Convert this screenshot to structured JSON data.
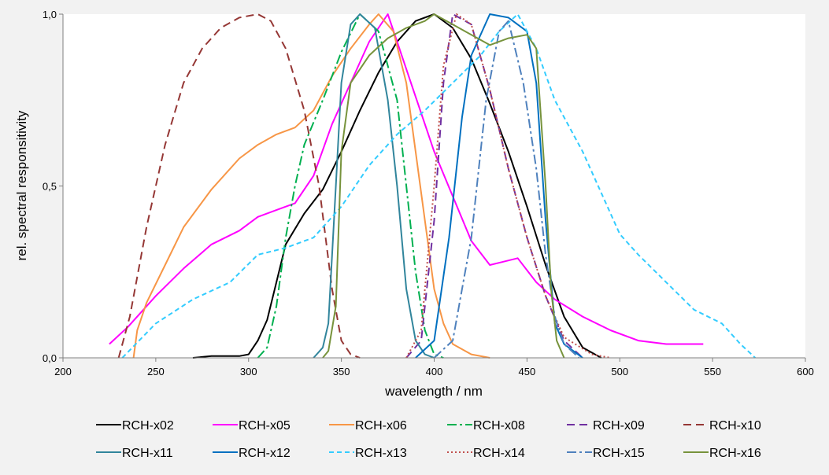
{
  "chart_data": {
    "type": "line",
    "title": "",
    "xlabel": "wavelength  / nm",
    "ylabel": "rel. spectral responsitivity",
    "xlim": [
      200,
      600
    ],
    "ylim": [
      0,
      1
    ],
    "x_ticks": [
      200,
      250,
      300,
      350,
      400,
      450,
      500,
      550,
      600
    ],
    "x_tick_labels": [
      "200",
      "250",
      "300",
      "350",
      "400",
      "450",
      "500",
      "550",
      "600"
    ],
    "y_ticks": [
      0,
      0.5,
      1
    ],
    "y_tick_labels": [
      "0,0",
      "0,5",
      "1,0"
    ],
    "grid": false,
    "legend_position": "bottom",
    "series": [
      {
        "name": "RCH-x02",
        "color": "#000000",
        "dash": "solid",
        "points": [
          [
            270,
            0
          ],
          [
            280,
            0.005
          ],
          [
            295,
            0.005
          ],
          [
            300,
            0.01
          ],
          [
            305,
            0.05
          ],
          [
            310,
            0.11
          ],
          [
            315,
            0.22
          ],
          [
            320,
            0.33
          ],
          [
            330,
            0.42
          ],
          [
            340,
            0.49
          ],
          [
            350,
            0.6
          ],
          [
            360,
            0.72
          ],
          [
            370,
            0.83
          ],
          [
            380,
            0.92
          ],
          [
            390,
            0.98
          ],
          [
            400,
            1.0
          ],
          [
            410,
            0.96
          ],
          [
            420,
            0.87
          ],
          [
            430,
            0.74
          ],
          [
            440,
            0.6
          ],
          [
            450,
            0.44
          ],
          [
            460,
            0.27
          ],
          [
            470,
            0.12
          ],
          [
            480,
            0.03
          ],
          [
            490,
            0
          ]
        ]
      },
      {
        "name": "RCH-x05",
        "color": "#ff00ff",
        "dash": "solid",
        "points": [
          [
            225,
            0.04
          ],
          [
            235,
            0.09
          ],
          [
            250,
            0.18
          ],
          [
            265,
            0.26
          ],
          [
            280,
            0.33
          ],
          [
            295,
            0.37
          ],
          [
            305,
            0.41
          ],
          [
            315,
            0.43
          ],
          [
            325,
            0.45
          ],
          [
            335,
            0.53
          ],
          [
            345,
            0.68
          ],
          [
            355,
            0.8
          ],
          [
            365,
            0.92
          ],
          [
            375,
            1.0
          ],
          [
            380,
            0.92
          ],
          [
            390,
            0.76
          ],
          [
            400,
            0.6
          ],
          [
            410,
            0.47
          ],
          [
            420,
            0.34
          ],
          [
            430,
            0.27
          ],
          [
            445,
            0.29
          ],
          [
            455,
            0.22
          ],
          [
            465,
            0.17
          ],
          [
            480,
            0.12
          ],
          [
            495,
            0.08
          ],
          [
            510,
            0.05
          ],
          [
            525,
            0.04
          ],
          [
            545,
            0.04
          ]
        ]
      },
      {
        "name": "RCH-x06",
        "color": "#f79646",
        "dash": "solid",
        "points": [
          [
            238,
            0
          ],
          [
            240,
            0.08
          ],
          [
            245,
            0.16
          ],
          [
            255,
            0.27
          ],
          [
            265,
            0.38
          ],
          [
            280,
            0.49
          ],
          [
            295,
            0.58
          ],
          [
            305,
            0.62
          ],
          [
            315,
            0.65
          ],
          [
            325,
            0.67
          ],
          [
            335,
            0.72
          ],
          [
            345,
            0.82
          ],
          [
            355,
            0.9
          ],
          [
            365,
            0.97
          ],
          [
            370,
            1.0
          ],
          [
            378,
            0.95
          ],
          [
            385,
            0.8
          ],
          [
            390,
            0.6
          ],
          [
            395,
            0.4
          ],
          [
            400,
            0.2
          ],
          [
            405,
            0.1
          ],
          [
            410,
            0.04
          ],
          [
            420,
            0.01
          ],
          [
            430,
            0
          ]
        ]
      },
      {
        "name": "RCH-x08",
        "color": "#00b050",
        "dash": "12,4,3,4",
        "points": [
          [
            305,
            0
          ],
          [
            310,
            0.03
          ],
          [
            315,
            0.15
          ],
          [
            320,
            0.35
          ],
          [
            325,
            0.5
          ],
          [
            330,
            0.62
          ],
          [
            340,
            0.75
          ],
          [
            350,
            0.89
          ],
          [
            360,
            1.0
          ],
          [
            370,
            0.95
          ],
          [
            380,
            0.75
          ],
          [
            385,
            0.5
          ],
          [
            390,
            0.25
          ],
          [
            395,
            0.08
          ],
          [
            400,
            0.01
          ],
          [
            405,
            0
          ]
        ]
      },
      {
        "name": "RCH-x09",
        "color": "#7030a0",
        "dash": "10,6",
        "points": [
          [
            385,
            0
          ],
          [
            393,
            0.05
          ],
          [
            400,
            0.4
          ],
          [
            405,
            0.8
          ],
          [
            410,
            1.0
          ],
          [
            420,
            0.97
          ],
          [
            430,
            0.78
          ],
          [
            440,
            0.55
          ],
          [
            450,
            0.35
          ],
          [
            460,
            0.18
          ],
          [
            470,
            0.05
          ],
          [
            480,
            0
          ]
        ]
      },
      {
        "name": "RCH-x10",
        "color": "#953735",
        "dash": "10,6",
        "points": [
          [
            230,
            0
          ],
          [
            236,
            0.12
          ],
          [
            245,
            0.38
          ],
          [
            255,
            0.62
          ],
          [
            265,
            0.8
          ],
          [
            275,
            0.9
          ],
          [
            285,
            0.96
          ],
          [
            295,
            0.99
          ],
          [
            305,
            1.0
          ],
          [
            312,
            0.98
          ],
          [
            320,
            0.9
          ],
          [
            330,
            0.72
          ],
          [
            338,
            0.5
          ],
          [
            345,
            0.2
          ],
          [
            350,
            0.05
          ],
          [
            355,
            0.01
          ],
          [
            360,
            0
          ]
        ]
      },
      {
        "name": "RCH-x11",
        "color": "#31859c",
        "dash": "solid",
        "points": [
          [
            335,
            0
          ],
          [
            340,
            0.03
          ],
          [
            343,
            0.1
          ],
          [
            347,
            0.5
          ],
          [
            350,
            0.8
          ],
          [
            355,
            0.97
          ],
          [
            360,
            1.0
          ],
          [
            368,
            0.96
          ],
          [
            375,
            0.75
          ],
          [
            380,
            0.5
          ],
          [
            385,
            0.2
          ],
          [
            390,
            0.05
          ],
          [
            395,
            0.01
          ],
          [
            400,
            0
          ]
        ]
      },
      {
        "name": "RCH-x12",
        "color": "#0070c0",
        "dash": "solid",
        "points": [
          [
            390,
            0
          ],
          [
            400,
            0.05
          ],
          [
            408,
            0.35
          ],
          [
            415,
            0.7
          ],
          [
            420,
            0.88
          ],
          [
            430,
            1.0
          ],
          [
            440,
            0.99
          ],
          [
            450,
            0.95
          ],
          [
            455,
            0.8
          ],
          [
            460,
            0.4
          ],
          [
            465,
            0.1
          ],
          [
            470,
            0.04
          ],
          [
            475,
            0.02
          ],
          [
            480,
            0
          ]
        ]
      },
      {
        "name": "RCH-x13",
        "color": "#33ccff",
        "dash": "6,4",
        "points": [
          [
            232,
            0
          ],
          [
            250,
            0.1
          ],
          [
            270,
            0.17
          ],
          [
            290,
            0.22
          ],
          [
            305,
            0.3
          ],
          [
            320,
            0.32
          ],
          [
            335,
            0.35
          ],
          [
            350,
            0.44
          ],
          [
            365,
            0.56
          ],
          [
            380,
            0.65
          ],
          [
            395,
            0.72
          ],
          [
            410,
            0.8
          ],
          [
            425,
            0.88
          ],
          [
            435,
            0.95
          ],
          [
            445,
            1.0
          ],
          [
            455,
            0.9
          ],
          [
            465,
            0.75
          ],
          [
            480,
            0.6
          ],
          [
            490,
            0.48
          ],
          [
            500,
            0.36
          ],
          [
            510,
            0.3
          ],
          [
            525,
            0.22
          ],
          [
            540,
            0.14
          ],
          [
            555,
            0.1
          ],
          [
            565,
            0.04
          ],
          [
            573,
            0
          ]
        ]
      },
      {
        "name": "RCH-x14",
        "color": "#c0504d",
        "dash": "2,3",
        "points": [
          [
            385,
            0
          ],
          [
            393,
            0.08
          ],
          [
            400,
            0.5
          ],
          [
            405,
            0.85
          ],
          [
            412,
            1.0
          ],
          [
            420,
            0.97
          ],
          [
            430,
            0.78
          ],
          [
            440,
            0.55
          ],
          [
            450,
            0.35
          ],
          [
            460,
            0.18
          ],
          [
            470,
            0.06
          ],
          [
            485,
            0.01
          ],
          [
            495,
            0
          ]
        ]
      },
      {
        "name": "RCH-x15",
        "color": "#4f81bd",
        "dash": "12,4,3,4",
        "points": [
          [
            400,
            0
          ],
          [
            410,
            0.05
          ],
          [
            420,
            0.35
          ],
          [
            428,
            0.75
          ],
          [
            435,
            0.95
          ],
          [
            440,
            0.98
          ],
          [
            448,
            0.8
          ],
          [
            455,
            0.55
          ],
          [
            460,
            0.3
          ],
          [
            465,
            0.12
          ],
          [
            470,
            0.04
          ],
          [
            478,
            0
          ]
        ]
      },
      {
        "name": "RCH-x16",
        "color": "#77933c",
        "dash": "solid",
        "points": [
          [
            340,
            0
          ],
          [
            343,
            0.02
          ],
          [
            347,
            0.15
          ],
          [
            350,
            0.6
          ],
          [
            355,
            0.8
          ],
          [
            365,
            0.88
          ],
          [
            375,
            0.93
          ],
          [
            385,
            0.96
          ],
          [
            395,
            0.98
          ],
          [
            400,
            1.0
          ],
          [
            410,
            0.97
          ],
          [
            420,
            0.94
          ],
          [
            430,
            0.91
          ],
          [
            440,
            0.93
          ],
          [
            450,
            0.94
          ],
          [
            455,
            0.9
          ],
          [
            460,
            0.5
          ],
          [
            463,
            0.2
          ],
          [
            466,
            0.05
          ],
          [
            470,
            0
          ]
        ]
      }
    ]
  }
}
